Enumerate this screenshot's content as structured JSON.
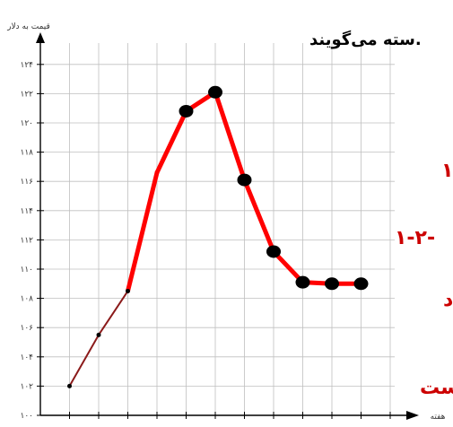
{
  "chart_data": {
    "type": "line",
    "ylabel": "قیمت به دلار",
    "xlabel": "هفته",
    "y_ticks": [
      "۱۰۰",
      "۱۰۲",
      "۱۰۴",
      "۱۰۶",
      "۱۰۸",
      "۱۱۰",
      "۱۱۲",
      "۱۱۴",
      "۱۱۶",
      "۱۱۸",
      "۱۲۰",
      "۱۲۲",
      "۱۲۴"
    ],
    "ylim": [
      100,
      124
    ],
    "xlim": [
      0,
      12.5
    ],
    "x": [
      1,
      2,
      3,
      4,
      5,
      6,
      7,
      8,
      9,
      10,
      11
    ],
    "values": [
      102,
      105.5,
      108.5,
      116.6,
      120.8,
      122.1,
      116.1,
      111.2,
      109.1,
      109,
      109
    ],
    "grid": true,
    "colors": {
      "trend": "#ff0000",
      "base_line": "#8b1a1a",
      "marker": "#000000",
      "grid": "#bfbfbf",
      "side_text": "#cc0000"
    }
  },
  "side_text": {
    "top_line": "سته می‌گویند.",
    "line_1": "۱",
    "line_2": "۱-۲-",
    "line_3": "د",
    "line_4": "ست"
  }
}
